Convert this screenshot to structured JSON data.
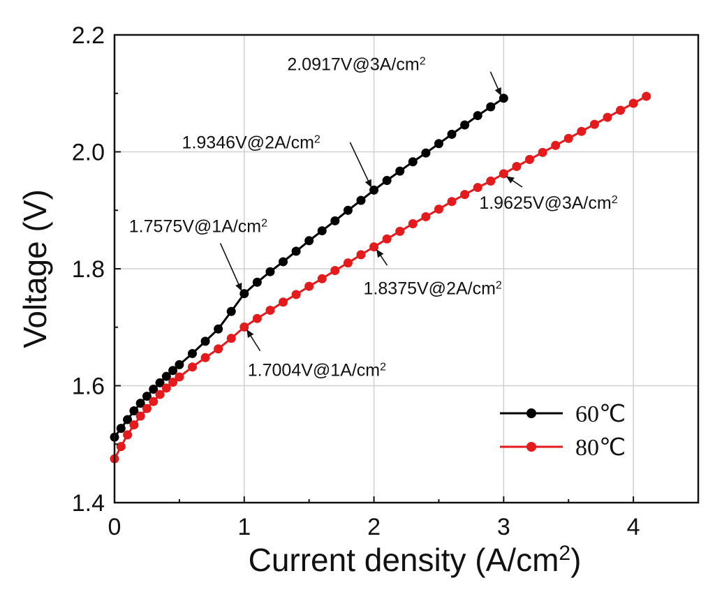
{
  "chart_data": {
    "type": "line",
    "xlabel": "Current density (A/cm",
    "xlabel_sup": "2",
    "xlabel_end": ")",
    "ylabel": "Voltage (V)",
    "xlim": [
      0,
      4.5
    ],
    "ylim": [
      1.4,
      2.2
    ],
    "x_ticks": [
      0,
      1,
      2,
      3,
      4
    ],
    "y_ticks": [
      1.4,
      1.6,
      1.8,
      2.0,
      2.2
    ],
    "x_tick_labels": [
      "0",
      "1",
      "2",
      "3",
      "4"
    ],
    "y_tick_labels": [
      "1.4",
      "1.6",
      "1.8",
      "2.0",
      "2.2"
    ],
    "grid": true,
    "legend_position": "bottom-right",
    "series": [
      {
        "name": "60℃",
        "color": "#000000",
        "marker": "circle",
        "points": [
          [
            0.0,
            1.512
          ],
          [
            0.05,
            1.527
          ],
          [
            0.1,
            1.542
          ],
          [
            0.15,
            1.557
          ],
          [
            0.2,
            1.57
          ],
          [
            0.25,
            1.582
          ],
          [
            0.3,
            1.594
          ],
          [
            0.35,
            1.605
          ],
          [
            0.4,
            1.616
          ],
          [
            0.45,
            1.626
          ],
          [
            0.5,
            1.636
          ],
          [
            0.6,
            1.655
          ],
          [
            0.7,
            1.676
          ],
          [
            0.8,
            1.697
          ],
          [
            0.9,
            1.727
          ],
          [
            1.0,
            1.7575
          ],
          [
            1.1,
            1.777
          ],
          [
            1.2,
            1.795
          ],
          [
            1.3,
            1.812
          ],
          [
            1.4,
            1.83
          ],
          [
            1.5,
            1.848
          ],
          [
            1.6,
            1.865
          ],
          [
            1.7,
            1.882
          ],
          [
            1.8,
            1.9
          ],
          [
            1.9,
            1.917
          ],
          [
            2.0,
            1.9346
          ],
          [
            2.1,
            1.951
          ],
          [
            2.2,
            1.967
          ],
          [
            2.3,
            1.983
          ],
          [
            2.4,
            1.998
          ],
          [
            2.5,
            2.014
          ],
          [
            2.6,
            2.03
          ],
          [
            2.7,
            2.046
          ],
          [
            2.8,
            2.062
          ],
          [
            2.9,
            2.077
          ],
          [
            3.0,
            2.0917
          ]
        ]
      },
      {
        "name": "80℃",
        "color": "#e41a1c",
        "marker": "circle",
        "points": [
          [
            0.0,
            1.475
          ],
          [
            0.05,
            1.496
          ],
          [
            0.1,
            1.516
          ],
          [
            0.15,
            1.533
          ],
          [
            0.2,
            1.548
          ],
          [
            0.25,
            1.561
          ],
          [
            0.3,
            1.573
          ],
          [
            0.35,
            1.585
          ],
          [
            0.4,
            1.596
          ],
          [
            0.45,
            1.606
          ],
          [
            0.5,
            1.615
          ],
          [
            0.6,
            1.632
          ],
          [
            0.7,
            1.648
          ],
          [
            0.8,
            1.663
          ],
          [
            0.9,
            1.681
          ],
          [
            1.0,
            1.7004
          ],
          [
            1.1,
            1.715
          ],
          [
            1.2,
            1.729
          ],
          [
            1.3,
            1.743
          ],
          [
            1.4,
            1.756
          ],
          [
            1.5,
            1.77
          ],
          [
            1.6,
            1.783
          ],
          [
            1.7,
            1.797
          ],
          [
            1.8,
            1.81
          ],
          [
            1.9,
            1.824
          ],
          [
            2.0,
            1.8375
          ],
          [
            2.1,
            1.851
          ],
          [
            2.2,
            1.864
          ],
          [
            2.3,
            1.877
          ],
          [
            2.4,
            1.889
          ],
          [
            2.5,
            1.902
          ],
          [
            2.6,
            1.915
          ],
          [
            2.7,
            1.927
          ],
          [
            2.8,
            1.939
          ],
          [
            2.9,
            1.95
          ],
          [
            3.0,
            1.9625
          ],
          [
            3.1,
            1.975
          ],
          [
            3.2,
            1.987
          ],
          [
            3.3,
            1.999
          ],
          [
            3.4,
            2.011
          ],
          [
            3.5,
            2.023
          ],
          [
            3.6,
            2.035
          ],
          [
            3.7,
            2.047
          ],
          [
            3.8,
            2.059
          ],
          [
            3.9,
            2.071
          ],
          [
            4.0,
            2.083
          ],
          [
            4.1,
            2.095
          ]
        ]
      }
    ],
    "annotations": [
      {
        "text": "2.0917V@3A/cm",
        "sup": "2",
        "target": [
          3.0,
          2.0917
        ],
        "series": "60℃"
      },
      {
        "text": "1.9346V@2A/cm",
        "sup": "2",
        "target": [
          2.0,
          1.9346
        ],
        "series": "60℃"
      },
      {
        "text": "1.7575V@1A/cm",
        "sup": "2",
        "target": [
          1.0,
          1.7575
        ],
        "series": "60℃"
      },
      {
        "text": "1.9625V@3A/cm",
        "sup": "2",
        "target": [
          3.0,
          1.9625
        ],
        "series": "80℃"
      },
      {
        "text": "1.8375V@2A/cm",
        "sup": "2",
        "target": [
          2.0,
          1.8375
        ],
        "series": "80℃"
      },
      {
        "text": "1.7004V@1A/cm",
        "sup": "2",
        "target": [
          1.0,
          1.7004
        ],
        "series": "80℃"
      }
    ]
  }
}
